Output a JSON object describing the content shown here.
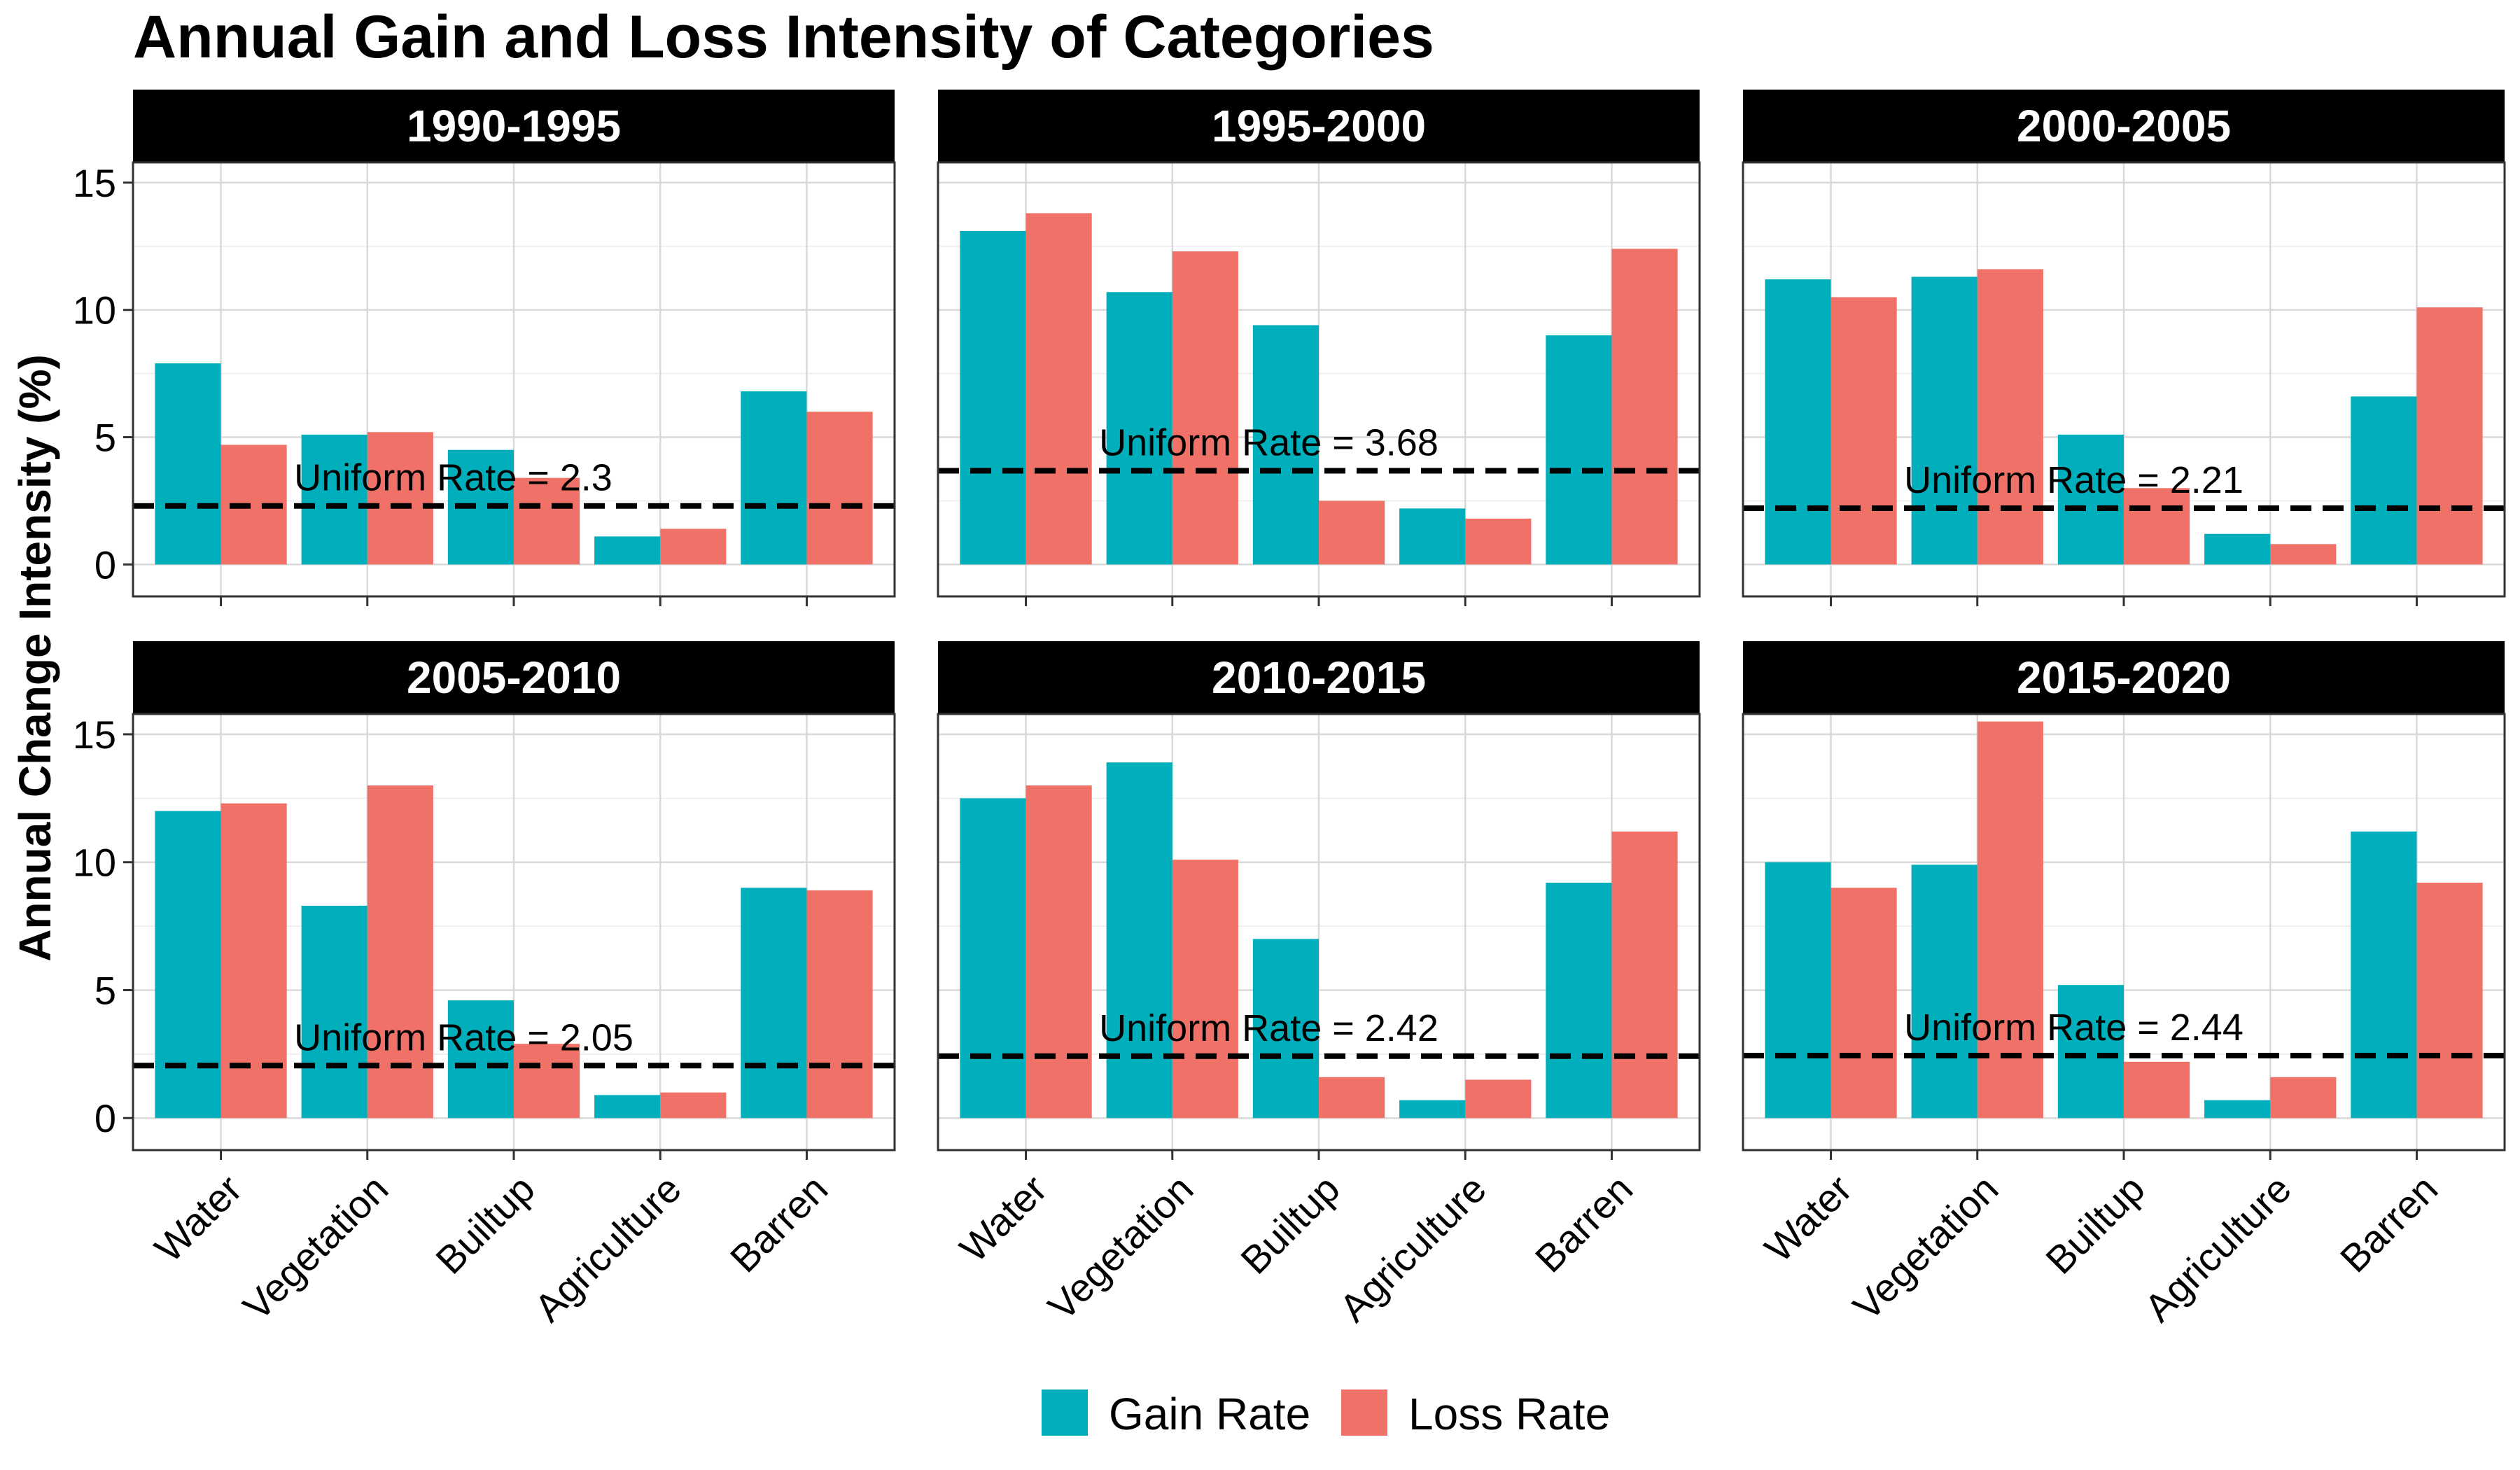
{
  "chart_data": {
    "type": "bar",
    "title": "Annual Gain and Loss Intensity of Categories",
    "ylabel": "Annual Change Intensity (%)",
    "xlabel": "",
    "categories": [
      "Water",
      "Vegetation",
      "Builtup",
      "Agriculture",
      "Barren"
    ],
    "ylim": [
      0,
      16
    ],
    "y_ticks": [
      0,
      5,
      10,
      15
    ],
    "grid": true,
    "legend_position": "bottom",
    "reference_label": "Uniform Rate = ",
    "colors": {
      "Gain Rate": "#00AFBB",
      "Loss Rate": "#F07167"
    },
    "series_names": [
      "Gain Rate",
      "Loss Rate"
    ],
    "panels": [
      {
        "period": "1990-1995",
        "uniform_rate": 2.3,
        "uniform_rate_label": "2.3",
        "series": [
          {
            "name": "Gain Rate",
            "values": [
              7.9,
              5.1,
              4.5,
              1.1,
              6.8
            ]
          },
          {
            "name": "Loss Rate",
            "values": [
              4.7,
              5.2,
              3.4,
              1.4,
              6.0
            ]
          }
        ]
      },
      {
        "period": "1995-2000",
        "uniform_rate": 3.68,
        "uniform_rate_label": "3.68",
        "series": [
          {
            "name": "Gain Rate",
            "values": [
              13.1,
              10.7,
              9.4,
              2.2,
              9.0
            ]
          },
          {
            "name": "Loss Rate",
            "values": [
              13.8,
              12.3,
              2.5,
              1.8,
              12.4
            ]
          }
        ]
      },
      {
        "period": "2000-2005",
        "uniform_rate": 2.21,
        "uniform_rate_label": "2.21",
        "series": [
          {
            "name": "Gain Rate",
            "values": [
              11.2,
              11.3,
              5.1,
              1.2,
              6.6
            ]
          },
          {
            "name": "Loss Rate",
            "values": [
              10.5,
              11.6,
              3.0,
              0.8,
              10.1
            ]
          }
        ]
      },
      {
        "period": "2005-2010",
        "uniform_rate": 2.05,
        "uniform_rate_label": "2.05",
        "series": [
          {
            "name": "Gain Rate",
            "values": [
              12.0,
              8.3,
              4.6,
              0.9,
              9.0
            ]
          },
          {
            "name": "Loss Rate",
            "values": [
              12.3,
              13.0,
              2.9,
              1.0,
              8.9
            ]
          }
        ]
      },
      {
        "period": "2010-2015",
        "uniform_rate": 2.42,
        "uniform_rate_label": "2.42",
        "series": [
          {
            "name": "Gain Rate",
            "values": [
              12.5,
              13.9,
              7.0,
              0.7,
              9.2
            ]
          },
          {
            "name": "Loss Rate",
            "values": [
              13.0,
              10.1,
              1.6,
              1.5,
              11.2
            ]
          }
        ]
      },
      {
        "period": "2015-2020",
        "uniform_rate": 2.44,
        "uniform_rate_label": "2.44",
        "series": [
          {
            "name": "Gain Rate",
            "values": [
              10.0,
              9.9,
              5.2,
              0.7,
              11.2
            ]
          },
          {
            "name": "Loss Rate",
            "values": [
              9.0,
              15.5,
              2.2,
              1.6,
              9.2
            ]
          }
        ]
      }
    ]
  }
}
